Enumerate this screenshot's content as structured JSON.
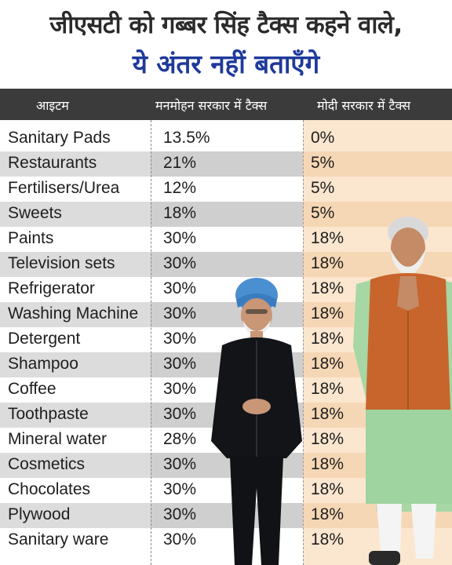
{
  "title": {
    "line1": "जीएसटी को गब्बर सिंह टैक्स कहने वाले,",
    "line2": "ये अंतर नहीं बताएँगे"
  },
  "table": {
    "headers": [
      "आइटम",
      "मनमोहन सरकार में टैक्स",
      "मोदी सरकार में टैक्स"
    ],
    "rows": [
      {
        "item": "Sanitary Pads",
        "manmohan": "13.5%",
        "modi": "0%"
      },
      {
        "item": "Restaurants",
        "manmohan": "21%",
        "modi": "5%"
      },
      {
        "item": "Fertilisers/Urea",
        "manmohan": "12%",
        "modi": "5%"
      },
      {
        "item": "Sweets",
        "manmohan": "18%",
        "modi": "5%"
      },
      {
        "item": "Paints",
        "manmohan": "30%",
        "modi": "18%"
      },
      {
        "item": "Television sets",
        "manmohan": "30%",
        "modi": "18%"
      },
      {
        "item": "Refrigerator",
        "manmohan": "30%",
        "modi": "18%"
      },
      {
        "item": "Washing Machine",
        "manmohan": "30%",
        "modi": "18%"
      },
      {
        "item": "Detergent",
        "manmohan": "30%",
        "modi": "18%"
      },
      {
        "item": "Shampoo",
        "manmohan": "30%",
        "modi": "18%"
      },
      {
        "item": "Coffee",
        "manmohan": "30%",
        "modi": "18%"
      },
      {
        "item": "Toothpaste",
        "manmohan": "30%",
        "modi": "18%"
      },
      {
        "item": "Mineral water",
        "manmohan": "28%",
        "modi": "18%"
      },
      {
        "item": "Cosmetics",
        "manmohan": "30%",
        "modi": "18%"
      },
      {
        "item": "Chocolates",
        "manmohan": "30%",
        "modi": "18%"
      },
      {
        "item": "Plywood",
        "manmohan": "30%",
        "modi": "18%"
      },
      {
        "item": "Sanitary ware",
        "manmohan": "30%",
        "modi": "18%"
      }
    ]
  },
  "colors": {
    "title_dark": "#2a2a2a",
    "title_blue": "#1f3a9a",
    "header_bg": "#3b3b3b",
    "modi_column_bg": "#fbe6cf"
  }
}
